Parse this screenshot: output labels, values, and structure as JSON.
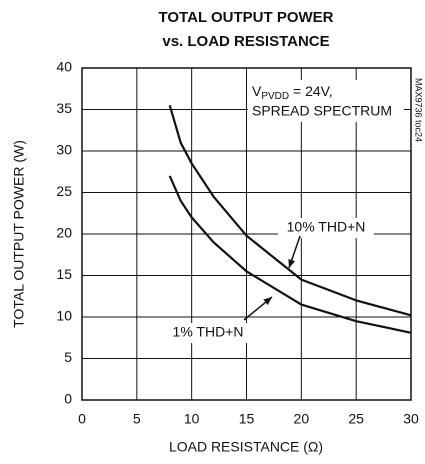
{
  "chart_data": {
    "type": "line",
    "title": [
      "TOTAL OUTPUT POWER",
      "vs. LOAD RESISTANCE"
    ],
    "xlabel": "LOAD RESISTANCE (Ω)",
    "ylabel": "TOTAL OUTPUT POWER (W)",
    "xlim": [
      0,
      30
    ],
    "xticks": [
      0,
      5,
      10,
      15,
      20,
      25,
      30
    ],
    "ylim": [
      0,
      40
    ],
    "yticks": [
      0,
      5,
      10,
      15,
      20,
      25,
      30,
      35,
      40
    ],
    "grid": true,
    "annotation": {
      "line1": {
        "v": "V",
        "sub": "PVDD",
        "rest": " = 24V,"
      },
      "line2": "SPREAD SPECTRUM"
    },
    "figure_id": "MAX9736 toc24",
    "series": [
      {
        "name": "10% THD+N",
        "color": "#111111",
        "x": [
          8,
          9,
          10,
          12,
          15,
          20,
          25,
          30
        ],
        "values": [
          35.5,
          31,
          28.5,
          24.5,
          19.8,
          14.5,
          12,
          10.2
        ]
      },
      {
        "name": "1% THD+N",
        "color": "#111111",
        "x": [
          8,
          9,
          10,
          12,
          15,
          20,
          25,
          30
        ],
        "values": [
          27,
          24,
          22,
          19,
          15.5,
          11.5,
          9.5,
          8.1
        ]
      }
    ]
  }
}
